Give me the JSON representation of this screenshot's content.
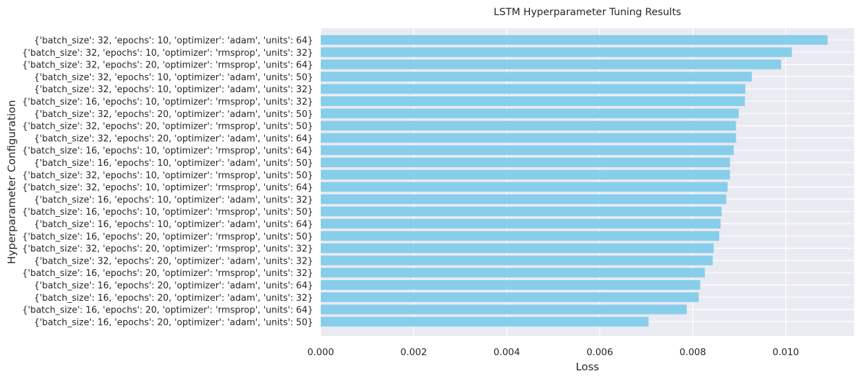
{
  "chart_data": {
    "type": "bar",
    "orientation": "horizontal",
    "title": "LSTM Hyperparameter Tuning Results",
    "xlabel": "Loss",
    "ylabel": "Hyperparameter Configuration",
    "xlim": [
      0,
      0.01147
    ],
    "x_ticks": [
      "0.000",
      "0.002",
      "0.004",
      "0.006",
      "0.008",
      "0.010"
    ],
    "x_tick_values": [
      0,
      0.002,
      0.004,
      0.006,
      0.008,
      0.01
    ],
    "grid": true,
    "bar_color": "#87ceeb",
    "background_color": "#eaeaf2",
    "categories": [
      "{'batch_size': 32, 'epochs': 10, 'optimizer': 'adam', 'units': 64}",
      "{'batch_size': 32, 'epochs': 10, 'optimizer': 'rmsprop', 'units': 32}",
      "{'batch_size': 32, 'epochs': 20, 'optimizer': 'rmsprop', 'units': 64}",
      "{'batch_size': 32, 'epochs': 10, 'optimizer': 'adam', 'units': 50}",
      "{'batch_size': 32, 'epochs': 10, 'optimizer': 'adam', 'units': 32}",
      "{'batch_size': 16, 'epochs': 10, 'optimizer': 'rmsprop', 'units': 32}",
      "{'batch_size': 32, 'epochs': 20, 'optimizer': 'adam', 'units': 50}",
      "{'batch_size': 32, 'epochs': 20, 'optimizer': 'rmsprop', 'units': 50}",
      "{'batch_size': 32, 'epochs': 20, 'optimizer': 'adam', 'units': 64}",
      "{'batch_size': 16, 'epochs': 10, 'optimizer': 'rmsprop', 'units': 64}",
      "{'batch_size': 16, 'epochs': 10, 'optimizer': 'adam', 'units': 50}",
      "{'batch_size': 32, 'epochs': 10, 'optimizer': 'rmsprop', 'units': 50}",
      "{'batch_size': 32, 'epochs': 10, 'optimizer': 'rmsprop', 'units': 64}",
      "{'batch_size': 16, 'epochs': 10, 'optimizer': 'adam', 'units': 32}",
      "{'batch_size': 16, 'epochs': 10, 'optimizer': 'rmsprop', 'units': 50}",
      "{'batch_size': 16, 'epochs': 10, 'optimizer': 'adam', 'units': 64}",
      "{'batch_size': 16, 'epochs': 20, 'optimizer': 'rmsprop', 'units': 50}",
      "{'batch_size': 32, 'epochs': 20, 'optimizer': 'rmsprop', 'units': 32}",
      "{'batch_size': 32, 'epochs': 20, 'optimizer': 'adam', 'units': 32}",
      "{'batch_size': 16, 'epochs': 20, 'optimizer': 'rmsprop', 'units': 32}",
      "{'batch_size': 16, 'epochs': 20, 'optimizer': 'adam', 'units': 64}",
      "{'batch_size': 16, 'epochs': 20, 'optimizer': 'adam', 'units': 32}",
      "{'batch_size': 16, 'epochs': 20, 'optimizer': 'rmsprop', 'units': 64}",
      "{'batch_size': 16, 'epochs': 20, 'optimizer': 'adam', 'units': 50}"
    ],
    "values": [
      0.0109,
      0.01013,
      0.0099,
      0.00927,
      0.00913,
      0.00912,
      0.00899,
      0.00893,
      0.00893,
      0.00888,
      0.0088,
      0.0088,
      0.00875,
      0.00872,
      0.00862,
      0.0086,
      0.00857,
      0.00845,
      0.00843,
      0.00826,
      0.00816,
      0.00813,
      0.00787,
      0.00705
    ]
  }
}
